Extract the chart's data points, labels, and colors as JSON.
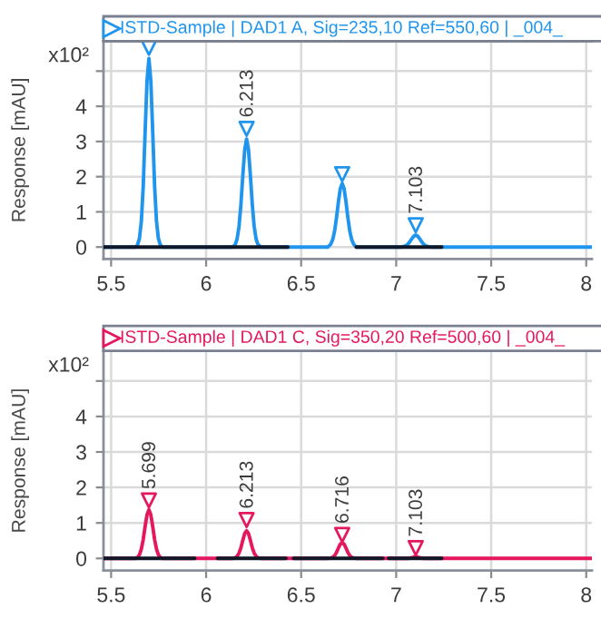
{
  "chart_data": [
    {
      "type": "line",
      "title": "ISTD-Sample | DAD1 A, Sig=235,10 Ref=550,60 | _004_",
      "ylabel": "Response [mAU]",
      "annotations": [
        "x10²",
        {
          "text": "6.213",
          "x": 6.213,
          "y": 3.36
        },
        {
          "text": "7.103",
          "x": 7.103,
          "y": 0.62
        }
      ],
      "xlim": [
        5.46,
        8.03
      ],
      "xticks": [
        5.5,
        6,
        6.5,
        7,
        7.5,
        8
      ],
      "ylim": [
        -0.34,
        5.85
      ],
      "yticks": [
        0,
        1,
        2,
        3,
        4,
        {
          "value": 5,
          "label": null
        }
      ],
      "grid": true,
      "series": [
        {
          "color": "#1f95ee",
          "x": [
            5.46,
            5.63,
            5.639,
            5.649,
            5.659,
            5.669,
            5.679,
            5.689,
            5.699,
            5.709,
            5.719,
            5.729,
            5.739,
            5.749,
            5.759,
            5.77,
            6.14,
            6.153,
            6.163,
            6.173,
            6.183,
            6.193,
            6.203,
            6.213,
            6.223,
            6.233,
            6.243,
            6.253,
            6.263,
            6.273,
            6.29,
            6.64,
            6.656,
            6.666,
            6.676,
            6.686,
            6.696,
            6.706,
            6.716,
            6.726,
            6.736,
            6.746,
            6.756,
            6.766,
            6.776,
            6.79,
            7.03,
            7.043,
            7.053,
            7.063,
            7.073,
            7.083,
            7.093,
            7.103,
            7.113,
            7.123,
            7.133,
            7.143,
            7.153,
            7.163,
            7.18,
            8.03
          ],
          "values": [
            0,
            0,
            0.06,
            0.24,
            0.72,
            1.72,
            3.27,
            4.73,
            5.36,
            4.73,
            3.27,
            1.72,
            0.72,
            0.24,
            0.06,
            0,
            0,
            0.07,
            0.23,
            0.58,
            1.2,
            2.03,
            2.76,
            3.07,
            2.76,
            2.03,
            1.2,
            0.58,
            0.23,
            0.07,
            0,
            0,
            0.08,
            0.21,
            0.45,
            0.83,
            1.28,
            1.66,
            1.81,
            1.66,
            1.28,
            0.83,
            0.45,
            0.21,
            0.08,
            0,
            0,
            0.02,
            0.04,
            0.09,
            0.16,
            0.24,
            0.31,
            0.34,
            0.31,
            0.24,
            0.16,
            0.09,
            0.04,
            0.02,
            0,
            0
          ]
        },
        {
          "color": "#101828",
          "x": [
            5.46,
            6.43,
            6.6,
            6.79,
            7.24
          ],
          "values": [
            0,
            0,
            null,
            0,
            0
          ]
        },
        {
          "type": "scatter",
          "color": "#1f95ee",
          "marker": "triangle",
          "x": [
            5.699,
            6.213,
            6.716,
            7.103
          ],
          "values": [
            5.66,
            3.36,
            2.07,
            0.62
          ]
        }
      ]
    },
    {
      "type": "line",
      "title": "ISTD-Sample | DAD1 C, Sig=350,20 Ref=500,60 | _004_",
      "ylabel": "Response [mAU]",
      "annotations": [
        "x10²",
        {
          "text": "5.699",
          "x": 5.699,
          "y": 1.63
        },
        {
          "text": "6.213",
          "x": 6.213,
          "y": 1.08
        },
        {
          "text": "6.716",
          "x": 6.716,
          "y": 0.66
        },
        {
          "text": "7.103",
          "x": 7.103,
          "y": 0.29
        }
      ],
      "xlim": [
        5.46,
        8.03
      ],
      "xticks": [
        5.5,
        6,
        6.5,
        7,
        7.5,
        8
      ],
      "ylim": [
        -0.34,
        5.85
      ],
      "yticks": [
        0,
        1,
        2,
        3,
        4,
        {
          "value": 5,
          "label": null
        }
      ],
      "grid": true,
      "series": [
        {
          "color": "#e5175f",
          "x": [
            5.46,
            5.63,
            5.639,
            5.649,
            5.659,
            5.669,
            5.679,
            5.689,
            5.699,
            5.709,
            5.719,
            5.729,
            5.739,
            5.749,
            5.759,
            5.77,
            6.14,
            6.153,
            6.163,
            6.173,
            6.183,
            6.193,
            6.203,
            6.213,
            6.223,
            6.233,
            6.243,
            6.253,
            6.263,
            6.273,
            6.29,
            6.64,
            6.656,
            6.666,
            6.676,
            6.686,
            6.696,
            6.706,
            6.716,
            6.726,
            6.736,
            6.746,
            6.756,
            6.766,
            6.776,
            6.79,
            7.03,
            7.043,
            7.053,
            7.063,
            7.073,
            7.083,
            7.093,
            7.103,
            7.113,
            7.123,
            7.133,
            7.143,
            7.153,
            7.163,
            7.18,
            8.03
          ],
          "values": [
            0,
            0,
            0.03,
            0.1,
            0.26,
            0.53,
            0.9,
            1.23,
            1.37,
            1.23,
            0.9,
            0.53,
            0.26,
            0.1,
            0.03,
            0,
            0,
            0.02,
            0.06,
            0.15,
            0.3,
            0.51,
            0.7,
            0.78,
            0.7,
            0.51,
            0.3,
            0.15,
            0.06,
            0.02,
            0,
            0,
            0.01,
            0.03,
            0.08,
            0.17,
            0.29,
            0.4,
            0.44,
            0.4,
            0.29,
            0.17,
            0.08,
            0.03,
            0.01,
            0,
            0,
            0,
            0,
            0,
            0.01,
            0.02,
            0.04,
            0.05,
            0.04,
            0.02,
            0.01,
            0,
            0,
            0,
            0,
            0
          ]
        },
        {
          "color": "#101828",
          "x": [
            5.46,
            5.94,
            6.0,
            6.06,
            6.42,
            6.44,
            6.46,
            6.93,
            6.945,
            6.96,
            7.24
          ],
          "values": [
            0,
            0,
            null,
            0,
            0,
            null,
            0,
            0,
            null,
            0,
            0
          ]
        },
        {
          "type": "scatter",
          "color": "#e5175f",
          "marker": "triangle",
          "x": [
            5.699,
            6.213,
            6.716,
            7.103
          ],
          "values": [
            1.63,
            1.08,
            0.66,
            0.29
          ]
        }
      ]
    }
  ]
}
